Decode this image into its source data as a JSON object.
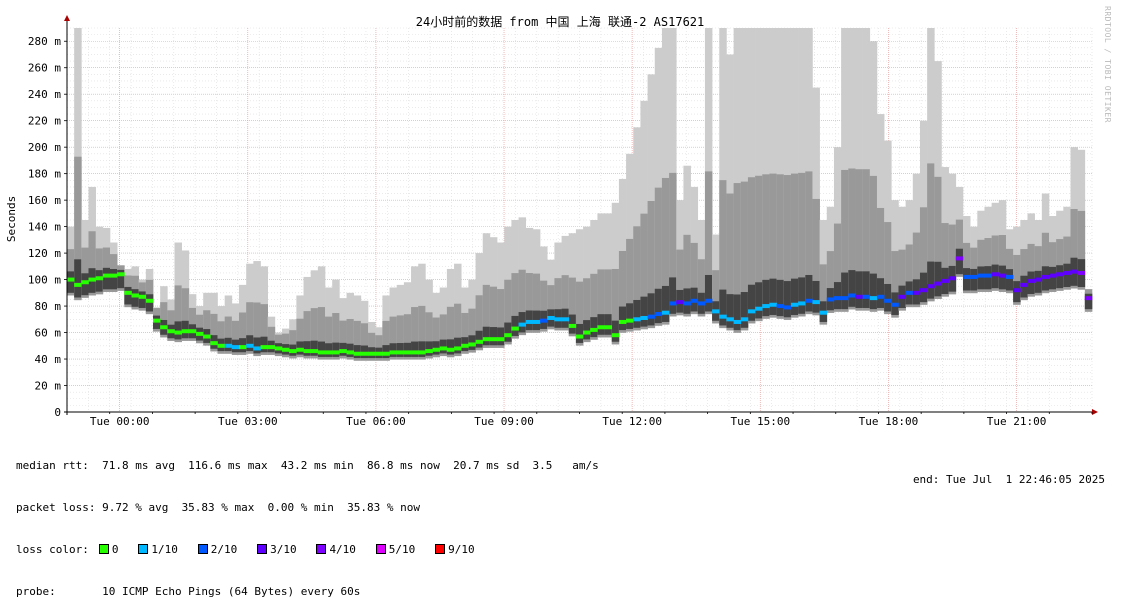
{
  "chart_data": {
    "type": "area",
    "title": "24小时前的数据 from 中国 上海 联通-2 AS17621",
    "ylabel": "Seconds",
    "ylim": [
      0,
      290
    ],
    "ytick_values": [
      0,
      20,
      40,
      60,
      80,
      100,
      120,
      140,
      160,
      180,
      200,
      220,
      240,
      260,
      280
    ],
    "ytick_labels": [
      "0",
      "20 m",
      "40 m",
      "60 m",
      "80 m",
      "100 m",
      "120 m",
      "140 m",
      "160 m",
      "180 m",
      "200 m",
      "220 m",
      "240 m",
      "260 m",
      "280 m"
    ],
    "x_start": "Mon Jun 30 22:46",
    "x_end": "Tue Jul 1 22:46",
    "xtick_labels": [
      "Tue 00:00",
      "Tue 03:00",
      "Tue 06:00",
      "Tue 09:00",
      "Tue 12:00",
      "Tue 15:00",
      "Tue 18:00",
      "Tue 21:00"
    ],
    "xtick_hours": [
      1.233,
      4.233,
      7.233,
      10.233,
      13.233,
      16.233,
      19.233,
      22.233
    ],
    "grid": true,
    "bucket_minutes": 15,
    "series": [
      {
        "name": "median rtt",
        "unit": "ms",
        "values": [
          100,
          96,
          98,
          100,
          101,
          103,
          103,
          104,
          90,
          88,
          87,
          84,
          69,
          64,
          61,
          60,
          61,
          61,
          59,
          57,
          52,
          50,
          50,
          49,
          49,
          50,
          48,
          49,
          49,
          48,
          47,
          46,
          47,
          46,
          46,
          45,
          45,
          45,
          46,
          45,
          44,
          44,
          44,
          44,
          44,
          45,
          45,
          45,
          45,
          45,
          46,
          47,
          48,
          47,
          48,
          50,
          51,
          53,
          55,
          55,
          55,
          58,
          63,
          66,
          68,
          68,
          69,
          71,
          70,
          70,
          65,
          57,
          60,
          62,
          64,
          64,
          58,
          68,
          69,
          70,
          71,
          72,
          74,
          75,
          82,
          83,
          82,
          84,
          82,
          84,
          76,
          72,
          70,
          68,
          70,
          76,
          78,
          80,
          81,
          80,
          79,
          81,
          82,
          84,
          83,
          75,
          85,
          86,
          86,
          88,
          87,
          87,
          86,
          87,
          84,
          81,
          87,
          90,
          90,
          92,
          95,
          97,
          99,
          101,
          116,
          102,
          102,
          103,
          103,
          104,
          103,
          102,
          92,
          96,
          99,
          100,
          102,
          103,
          104,
          105,
          106,
          105,
          86
        ]
      },
      {
        "name": "rtt max",
        "unit": "ms",
        "values": [
          140,
          300,
          145,
          170,
          140,
          139,
          128,
          108,
          108,
          110,
          100,
          108,
          79,
          95,
          85,
          128,
          122,
          89,
          80,
          90,
          90,
          80,
          88,
          82,
          96,
          112,
          114,
          110,
          72,
          60,
          63,
          70,
          88,
          102,
          107,
          110,
          94,
          100,
          86,
          90,
          88,
          84,
          68,
          64,
          88,
          94,
          96,
          98,
          110,
          112,
          100,
          90,
          94,
          108,
          112,
          94,
          100,
          120,
          135,
          132,
          128,
          140,
          145,
          147,
          139,
          138,
          125,
          115,
          128,
          133,
          135,
          138,
          140,
          145,
          150,
          150,
          158,
          176,
          195,
          215,
          235,
          255,
          275,
          290,
          290,
          160,
          186,
          170,
          145,
          290,
          134,
          290,
          270,
          290,
          290,
          290,
          290,
          290,
          290,
          290,
          290,
          290,
          290,
          290,
          245,
          145,
          155,
          200,
          290,
          290,
          290,
          290,
          280,
          225,
          205,
          160,
          155,
          160,
          180,
          220,
          290,
          265,
          185,
          180,
          170,
          148,
          140,
          152,
          155,
          158,
          160,
          138,
          140,
          145,
          150,
          145,
          165,
          148,
          152,
          155,
          200,
          198,
          90
        ]
      },
      {
        "name": "packet loss",
        "unit": "%",
        "values": [
          0,
          0,
          0,
          0,
          0,
          0,
          0,
          0,
          0,
          0,
          0,
          0,
          0,
          0,
          0,
          0,
          0,
          0,
          0,
          0,
          0,
          0,
          10,
          10,
          0,
          10,
          10,
          0,
          0,
          0,
          0,
          0,
          0,
          0,
          0,
          0,
          0,
          0,
          0,
          0,
          0,
          0,
          0,
          0,
          0,
          0,
          0,
          0,
          0,
          0,
          0,
          0,
          0,
          0,
          0,
          0,
          0,
          0,
          0,
          0,
          0,
          0,
          0,
          10,
          10,
          10,
          20,
          10,
          10,
          10,
          0,
          0,
          0,
          0,
          0,
          0,
          0,
          0,
          0,
          10,
          10,
          20,
          20,
          10,
          20,
          30,
          20,
          20,
          20,
          20,
          10,
          10,
          10,
          10,
          10,
          10,
          10,
          10,
          10,
          20,
          20,
          10,
          10,
          20,
          10,
          10,
          20,
          20,
          20,
          20,
          30,
          20,
          10,
          20,
          20,
          20,
          30,
          20,
          30,
          30,
          30,
          30,
          30,
          30,
          40,
          20,
          20,
          20,
          20,
          30,
          30,
          20,
          30,
          30,
          30,
          30,
          30,
          30,
          30,
          30,
          30,
          40,
          40
        ]
      }
    ]
  },
  "legend": {
    "median_rtt": "median rtt:  71.8 ms avg  116.6 ms max  43.2 ms min  86.8 ms now  20.7 ms sd  3.5   am/s",
    "packet_loss": "packet loss: 9.72 % avg  35.83 % max  0.00 % min  35.83 % now",
    "loss_color_label": "loss color:",
    "loss_colors": [
      {
        "label": "0",
        "color": "#26ff00"
      },
      {
        "label": "1/10",
        "color": "#00b8ff"
      },
      {
        "label": "2/10",
        "color": "#0059ff"
      },
      {
        "label": "3/10",
        "color": "#5e00ff"
      },
      {
        "label": "4/10",
        "color": "#7e00ff"
      },
      {
        "label": "5/10",
        "color": "#dd00ff"
      },
      {
        "label": "9/10",
        "color": "#ff0000"
      }
    ],
    "probe": "probe:       10 ICMP Echo Pings (64 Bytes) every 60s",
    "end": "end: Tue Jul  1 22:46:05 2025"
  },
  "watermark": "RRDTOOL / TOBI OETIKER",
  "colors": {
    "smoke_dark": "#444444",
    "smoke_mid": "#999999",
    "smoke_light": "#cccccc",
    "grid_major": "#e8a0a0",
    "grid_minor": "#dddddd",
    "axis": "#000000",
    "arrow": "#aa0000"
  }
}
